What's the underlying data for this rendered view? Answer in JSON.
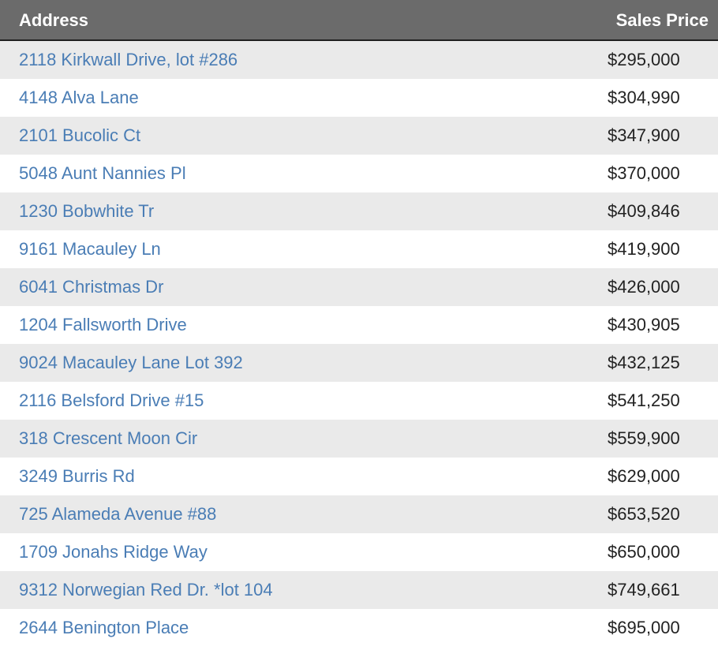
{
  "table": {
    "headers": {
      "address": "Address",
      "sales_price": "Sales Price"
    },
    "rows": [
      {
        "address": "2118 Kirkwall Drive, lot #286",
        "price": "$295,000"
      },
      {
        "address": "4148 Alva Lane",
        "price": "$304,990"
      },
      {
        "address": "2101 Bucolic Ct",
        "price": "$347,900"
      },
      {
        "address": "5048 Aunt Nannies Pl",
        "price": "$370,000"
      },
      {
        "address": "1230 Bobwhite Tr",
        "price": "$409,846"
      },
      {
        "address": "9161 Macauley Ln",
        "price": "$419,900"
      },
      {
        "address": "6041 Christmas Dr",
        "price": "$426,000"
      },
      {
        "address": "1204 Fallsworth Drive",
        "price": "$430,905"
      },
      {
        "address": "9024 Macauley Lane Lot 392",
        "price": "$432,125"
      },
      {
        "address": "2116 Belsford Drive #15",
        "price": "$541,250"
      },
      {
        "address": "318 Crescent Moon Cir",
        "price": "$559,900"
      },
      {
        "address": "3249 Burris Rd",
        "price": "$629,000"
      },
      {
        "address": "725 Alameda Avenue #88",
        "price": "$653,520"
      },
      {
        "address": "1709 Jonahs Ridge Way",
        "price": "$650,000"
      },
      {
        "address": "9312 Norwegian Red Dr. *lot 104",
        "price": "$749,661"
      },
      {
        "address": "2644 Benington Place",
        "price": "$695,000"
      }
    ]
  },
  "colors": {
    "header_bg": "#6b6b6b",
    "header_text": "#ffffff",
    "link": "#4a7db5",
    "stripe": "#eaeaea"
  }
}
